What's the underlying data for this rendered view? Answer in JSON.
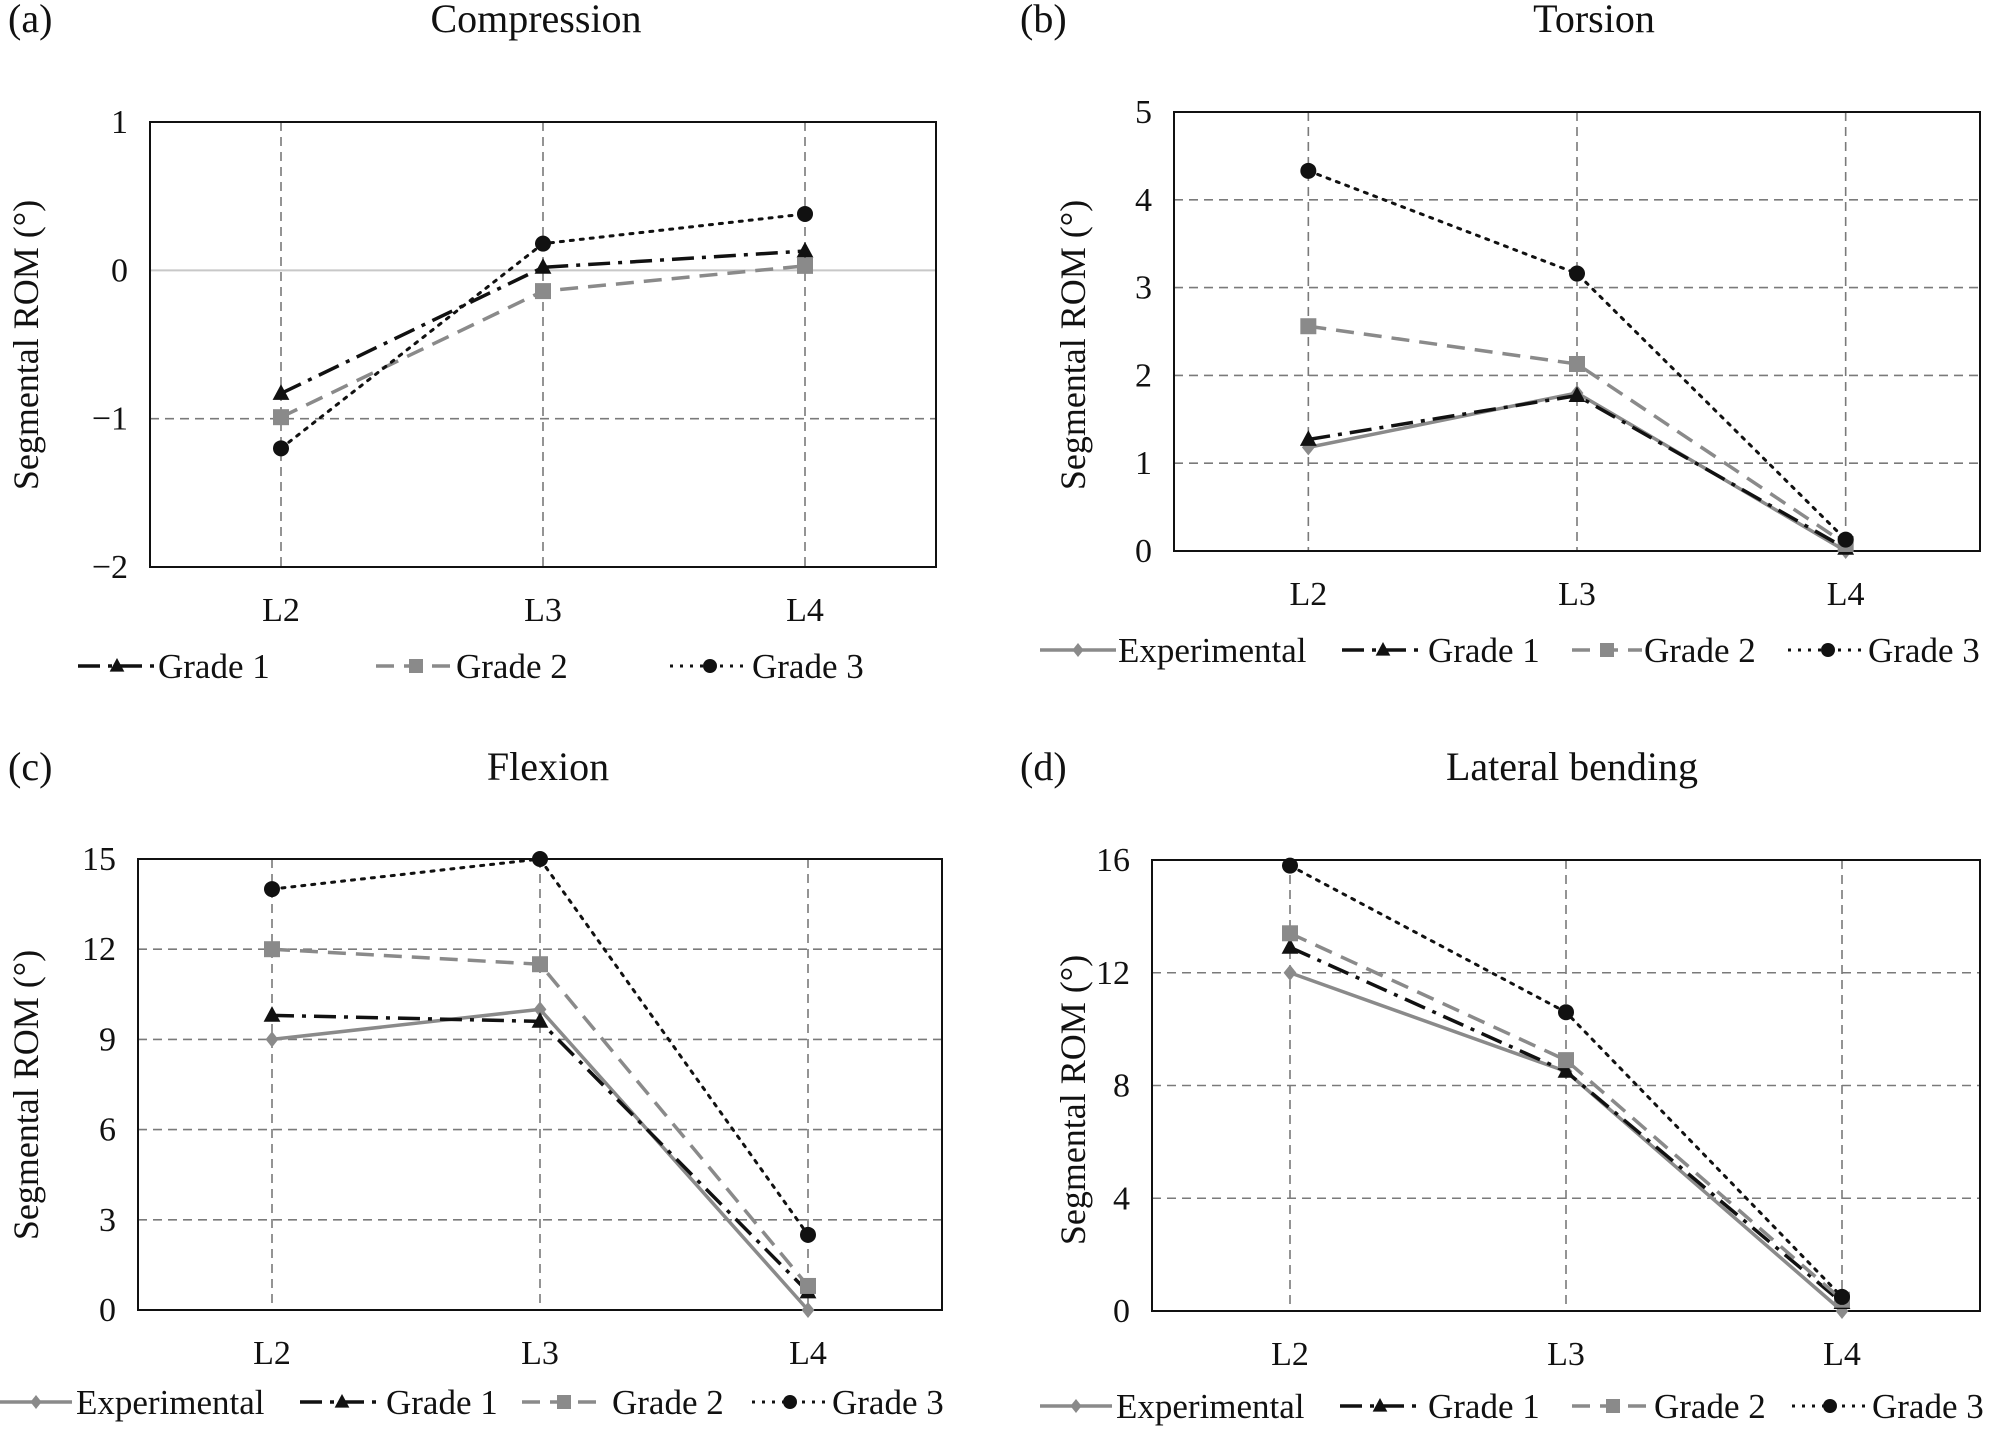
{
  "figure": {
    "panel_labels": [
      "(a)",
      "(b)",
      "(c)",
      "(d)"
    ]
  },
  "styles": {
    "Experimental": {
      "color": "#8a8a8a",
      "dash": "",
      "marker": "diamond",
      "width": 3.5
    },
    "Grade 1": {
      "color": "#111111",
      "dash": "22,8,4,8",
      "marker": "triangle",
      "width": 3.5
    },
    "Grade 2": {
      "color": "#8a8a8a",
      "dash": "18,10",
      "marker": "square",
      "width": 3.5
    },
    "Grade 3": {
      "color": "#111111",
      "dash": "3,7",
      "marker": "circle",
      "width": 3
    }
  },
  "chart_data": [
    {
      "type": "line",
      "title": "Compression",
      "ylabel": "Segmental ROM (°)",
      "categories": [
        "L2",
        "L3",
        "L4"
      ],
      "ylim": [
        -2,
        1
      ],
      "yticks": [
        1,
        0,
        -1,
        -2
      ],
      "ytick_labels": [
        "1",
        "0",
        "−1",
        "−2"
      ],
      "grid": true,
      "zero_line": true,
      "legend_position": "bottom",
      "series": [
        {
          "name": "Grade 1",
          "values": [
            -0.83,
            0.02,
            0.13
          ]
        },
        {
          "name": "Grade 2",
          "values": [
            -0.99,
            -0.14,
            0.03
          ]
        },
        {
          "name": "Grade 3",
          "values": [
            -1.2,
            0.18,
            0.38
          ]
        }
      ]
    },
    {
      "type": "line",
      "title": "Torsion",
      "ylabel": "Segmental ROM (°)",
      "categories": [
        "L2",
        "L3",
        "L4"
      ],
      "ylim": [
        0,
        5
      ],
      "yticks": [
        5,
        4,
        3,
        2,
        1,
        0
      ],
      "ytick_labels": [
        "5",
        "4",
        "3",
        "2",
        "1",
        "0"
      ],
      "grid": true,
      "legend_position": "bottom",
      "series": [
        {
          "name": "Experimental",
          "values": [
            1.18,
            1.8,
            0.0
          ]
        },
        {
          "name": "Grade 1",
          "values": [
            1.27,
            1.77,
            0.03
          ]
        },
        {
          "name": "Grade 2",
          "values": [
            2.56,
            2.13,
            0.08
          ]
        },
        {
          "name": "Grade 3",
          "values": [
            4.33,
            3.16,
            0.13
          ]
        }
      ]
    },
    {
      "type": "line",
      "title": "Flexion",
      "ylabel": "Segmental ROM (°)",
      "categories": [
        "L2",
        "L3",
        "L4"
      ],
      "ylim": [
        0,
        15
      ],
      "yticks": [
        15,
        12,
        9,
        6,
        3,
        0
      ],
      "ytick_labels": [
        "15",
        "12",
        "9",
        "6",
        "3",
        "0"
      ],
      "grid": true,
      "legend_position": "bottom",
      "series": [
        {
          "name": "Experimental",
          "values": [
            9.0,
            10.0,
            0.0
          ]
        },
        {
          "name": "Grade 1",
          "values": [
            9.8,
            9.6,
            0.6
          ]
        },
        {
          "name": "Grade 2",
          "values": [
            12.0,
            11.5,
            0.8
          ]
        },
        {
          "name": "Grade 3",
          "values": [
            14.0,
            15.0,
            2.5
          ]
        }
      ]
    },
    {
      "type": "line",
      "title": "Lateral bending",
      "ylabel": "Segmental ROM (°)",
      "categories": [
        "L2",
        "L3",
        "L4"
      ],
      "ylim": [
        0,
        16
      ],
      "yticks": [
        16,
        12,
        8,
        4,
        0
      ],
      "ytick_labels": [
        "16",
        "12",
        "8",
        "4",
        "0"
      ],
      "grid": true,
      "legend_position": "bottom",
      "series": [
        {
          "name": "Experimental",
          "values": [
            12.0,
            8.5,
            0.0
          ]
        },
        {
          "name": "Grade 1",
          "values": [
            12.9,
            8.5,
            0.3
          ]
        },
        {
          "name": "Grade 2",
          "values": [
            13.4,
            8.9,
            0.4
          ]
        },
        {
          "name": "Grade 3",
          "values": [
            15.8,
            10.6,
            0.5
          ]
        }
      ]
    }
  ]
}
